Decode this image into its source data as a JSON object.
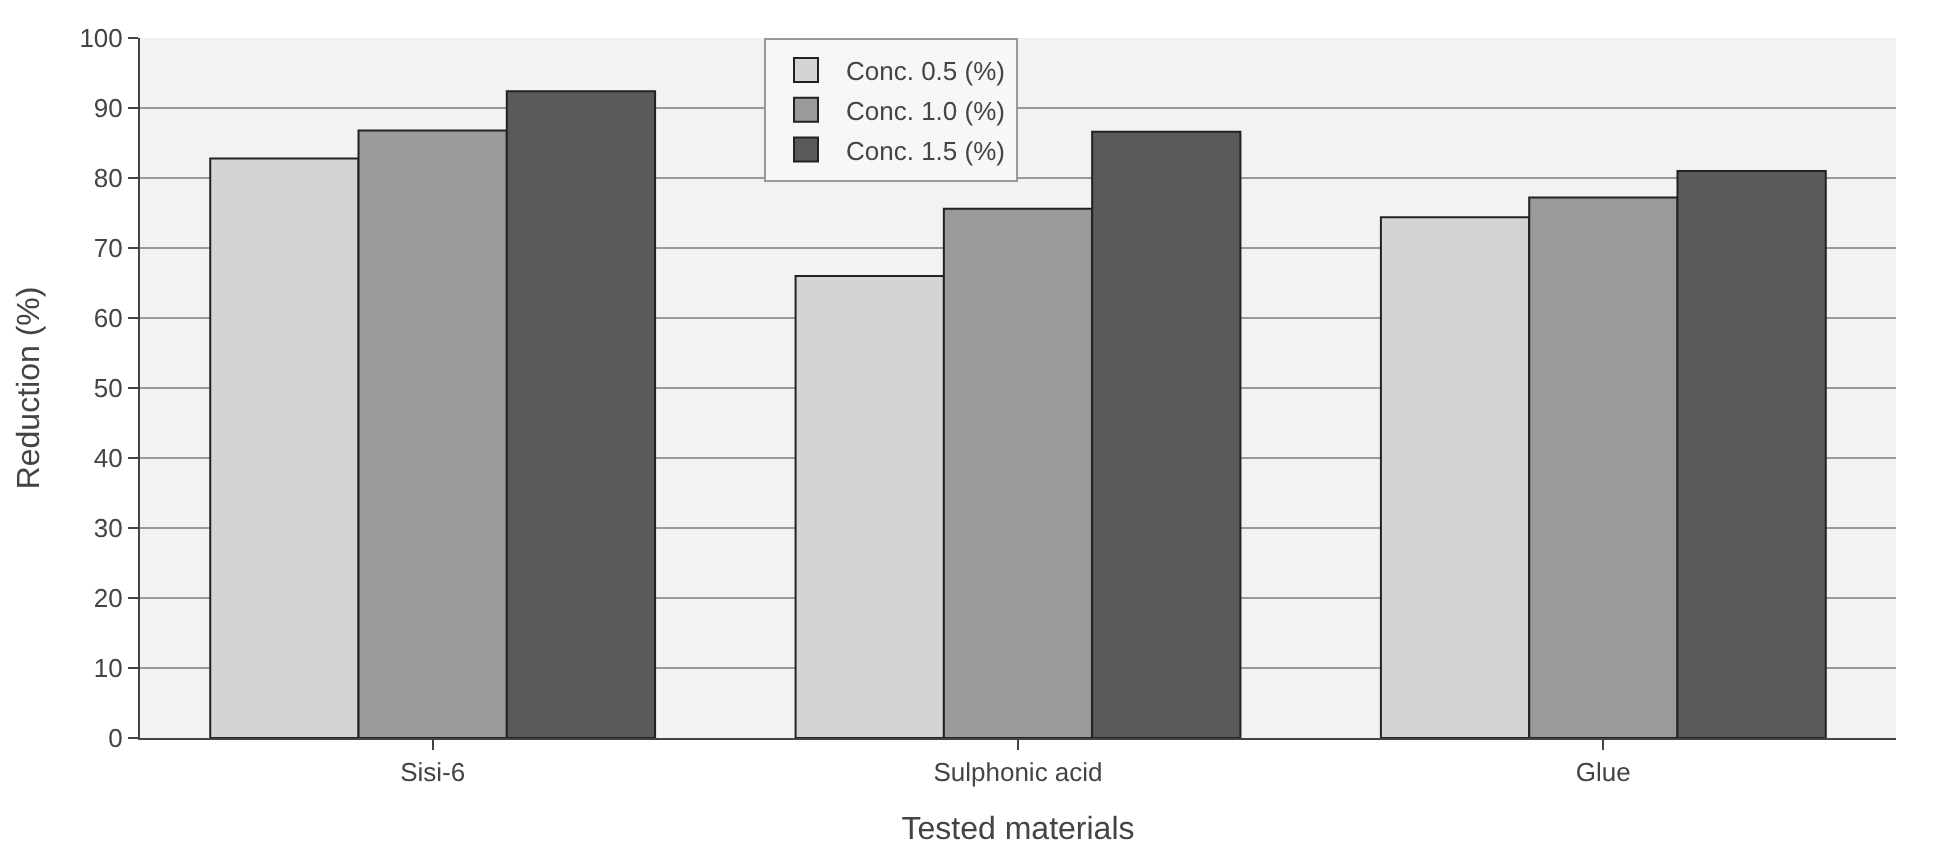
{
  "chart_data": {
    "type": "bar",
    "xlabel": "Tested materials",
    "ylabel": "Reduction (%)",
    "categories": [
      "Sisi-6",
      "Sulphonic acid",
      "Glue"
    ],
    "series": [
      {
        "name": "Conc. 0.5 (%)",
        "color": "#d4d4d4",
        "values": [
          82.8,
          66.0,
          74.4
        ]
      },
      {
        "name": "Conc. 1.0 (%)",
        "color": "#9a9a9a",
        "values": [
          86.8,
          75.6,
          77.2
        ]
      },
      {
        "name": "Conc. 1.5 (%)",
        "color": "#5a5a5a",
        "values": [
          92.4,
          86.6,
          81.0
        ]
      }
    ],
    "ylim": [
      0,
      100
    ],
    "yticks": [
      0,
      10,
      20,
      30,
      40,
      50,
      60,
      70,
      80,
      90,
      100
    ],
    "grid": "y",
    "legend": "top"
  }
}
